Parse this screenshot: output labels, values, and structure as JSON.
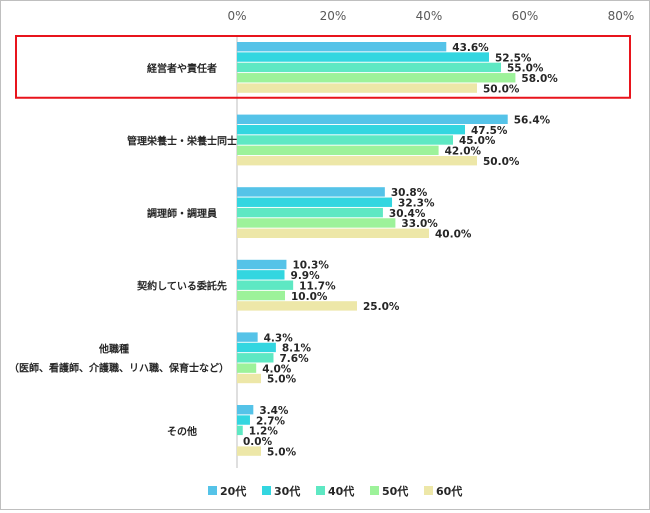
{
  "chart_data": {
    "type": "bar",
    "orientation": "horizontal",
    "xlim": [
      0,
      80
    ],
    "ticks": [
      "0%",
      "20%",
      "40%",
      "60%",
      "80%"
    ],
    "tick_values": [
      0,
      20,
      40,
      60,
      80
    ],
    "categories": [
      [
        "経営者や責任者"
      ],
      [
        "管理栄養士・栄養士同士"
      ],
      [
        "調理師・調理員"
      ],
      [
        "契約している委託先"
      ],
      [
        "他職種",
        "（医師、看護師、介護職、リハ職、保育士など）"
      ],
      [
        "その他"
      ]
    ],
    "series": [
      {
        "name": "20代",
        "color": "#55c3e8",
        "values": [
          43.6,
          56.4,
          30.8,
          10.3,
          4.3,
          3.4
        ]
      },
      {
        "name": "30代",
        "color": "#33d6e0",
        "values": [
          52.5,
          47.5,
          32.3,
          9.9,
          8.1,
          2.7
        ]
      },
      {
        "name": "40代",
        "color": "#5ee8c3",
        "values": [
          55.0,
          45.0,
          30.4,
          11.7,
          7.6,
          1.2
        ]
      },
      {
        "name": "50代",
        "color": "#9df29a",
        "values": [
          58.0,
          42.0,
          33.0,
          10.0,
          4.0,
          0.0
        ]
      },
      {
        "name": "60代",
        "color": "#ede7a8",
        "values": [
          50.0,
          50.0,
          40.0,
          25.0,
          5.0,
          5.0
        ]
      }
    ],
    "value_suffix": "%",
    "highlight_category_index": 0,
    "highlight_color": "#e8141c",
    "legend_position": "bottom"
  }
}
